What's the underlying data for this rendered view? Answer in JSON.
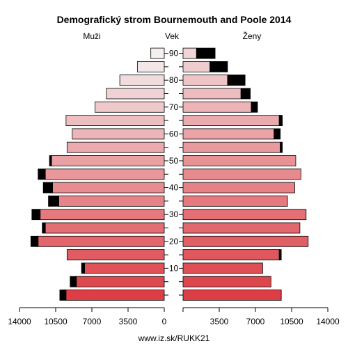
{
  "chart_data": {
    "type": "bar",
    "title": "Demografický strom Bournemouth and Poole 2014",
    "left_label": "Muži",
    "center_label": "Vek",
    "right_label": "Ženy",
    "footer": "www.iz.sk/RUKK21",
    "xlim": [
      0,
      14000
    ],
    "x_ticks_left": [
      "14000",
      "10500",
      "7000",
      "3500",
      "0"
    ],
    "x_ticks_right": [
      "3500",
      "7000",
      "10500",
      "14000"
    ],
    "age_ticks": [
      "10",
      "20",
      "30",
      "40",
      "50",
      "60",
      "70",
      "80",
      "90"
    ],
    "age_groups": [
      "0-4",
      "5-9",
      "10-14",
      "15-19",
      "20-24",
      "25-29",
      "30-34",
      "35-39",
      "40-44",
      "45-49",
      "50-54",
      "55-59",
      "60-64",
      "65-69",
      "70-74",
      "75-79",
      "80-84",
      "85-89",
      "90+"
    ],
    "series": [
      {
        "name": "Muži",
        "values": [
          9500,
          8500,
          7700,
          9400,
          12200,
          11500,
          12000,
          10200,
          10800,
          11500,
          10900,
          9400,
          8900,
          9500,
          6700,
          5600,
          4300,
          2600,
          1300
        ],
        "excess": [
          600,
          600,
          300,
          0,
          700,
          300,
          800,
          1000,
          900,
          700,
          200,
          0,
          0,
          0,
          0,
          0,
          0,
          0,
          0
        ]
      },
      {
        "name": "Ženy",
        "values": [
          9500,
          8500,
          7700,
          9300,
          12100,
          11300,
          11900,
          10100,
          10800,
          11400,
          10900,
          9400,
          8800,
          9300,
          6600,
          5600,
          4300,
          2600,
          1300
        ],
        "excess": [
          0,
          0,
          0,
          200,
          0,
          0,
          0,
          0,
          0,
          0,
          0,
          200,
          600,
          300,
          600,
          900,
          1700,
          1700,
          1800
        ]
      }
    ],
    "colors": {
      "excess": "#000000",
      "male_base": "#dd3e45",
      "female_base": "#dd3e45",
      "top_tint": "#f4f0f0"
    }
  }
}
